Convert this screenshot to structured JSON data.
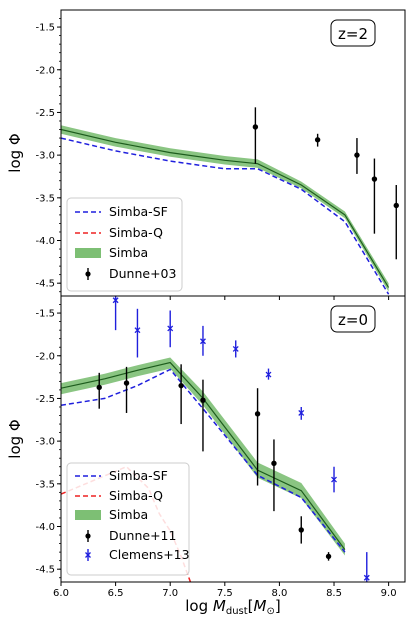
{
  "chart_data": [
    {
      "type": "line",
      "panel": "top",
      "annotation": "z=2",
      "ylabel": "log Φ",
      "xlabel": "",
      "xlim": [
        6.0,
        9.15
      ],
      "ylim": [
        -4.65,
        -1.3
      ],
      "yticks": [
        "-1.5",
        "-2.0",
        "-2.5",
        "-3.0",
        "-3.5",
        "-4.0",
        "-4.5"
      ],
      "ytick_values": [
        -1.5,
        -2.0,
        -2.5,
        -3.0,
        -3.5,
        -4.0,
        -4.5
      ],
      "legend_position": "lower-left",
      "legend": [
        {
          "label": "Simba-SF",
          "style": "dashed",
          "color": "#1f1fdd"
        },
        {
          "label": "Simba-Q",
          "style": "dashed",
          "color": "#ee2222"
        },
        {
          "label": "Simba",
          "style": "band",
          "color": "#7dbf74"
        },
        {
          "label": "Dunne+03",
          "style": "errorbar",
          "color": "#000000"
        }
      ],
      "series": [
        {
          "name": "Simba-SF",
          "kind": "line",
          "color": "#1f1fdd",
          "dash": true,
          "x": [
            6.0,
            6.5,
            7.0,
            7.5,
            7.8,
            8.2,
            8.6,
            9.0
          ],
          "y": [
            -2.8,
            -2.95,
            -3.07,
            -3.16,
            -3.16,
            -3.4,
            -3.78,
            -4.63
          ]
        },
        {
          "name": "Simba",
          "kind": "band",
          "color": "#7dbf74",
          "line_color": "#1d5c1d",
          "x": [
            6.0,
            6.5,
            7.0,
            7.5,
            7.8,
            8.2,
            8.6,
            9.0
          ],
          "y": [
            -2.7,
            -2.85,
            -2.97,
            -3.06,
            -3.1,
            -3.35,
            -3.7,
            -4.55
          ],
          "lower": [
            -2.75,
            -2.9,
            -3.02,
            -3.11,
            -3.15,
            -3.39,
            -3.74,
            -4.6
          ],
          "upper": [
            -2.65,
            -2.8,
            -2.92,
            -3.01,
            -3.05,
            -3.31,
            -3.66,
            -4.5
          ]
        },
        {
          "name": "Dunne+03",
          "kind": "errorbar",
          "color": "#000000",
          "marker": "circle",
          "points": [
            {
              "x": 7.78,
              "y": -2.67,
              "lo": -3.1,
              "hi": -2.44
            },
            {
              "x": 8.35,
              "y": -2.82,
              "lo": -2.9,
              "hi": -2.75
            },
            {
              "x": 8.71,
              "y": -3.0,
              "lo": -3.22,
              "hi": -2.8
            },
            {
              "x": 8.87,
              "y": -3.28,
              "lo": -3.92,
              "hi": -3.04
            },
            {
              "x": 9.07,
              "y": -3.59,
              "lo": -4.22,
              "hi": -3.35
            }
          ]
        }
      ]
    },
    {
      "type": "line",
      "panel": "bottom",
      "annotation": "z=0",
      "ylabel": "log Φ",
      "xlabel": "log M_dust[M_⊙]",
      "xlim": [
        6.0,
        9.15
      ],
      "ylim": [
        -4.65,
        -1.3
      ],
      "xticks": [
        "6.0",
        "6.5",
        "7.0",
        "7.5",
        "8.0",
        "8.5",
        "9.0"
      ],
      "xtick_values": [
        6.0,
        6.5,
        7.0,
        7.5,
        8.0,
        8.5,
        9.0
      ],
      "yticks": [
        "-1.5",
        "-2.0",
        "-2.5",
        "-3.0",
        "-3.5",
        "-4.0",
        "-4.5"
      ],
      "ytick_values": [
        -1.5,
        -2.0,
        -2.5,
        -3.0,
        -3.5,
        -4.0,
        -4.5
      ],
      "legend_position": "lower-left",
      "legend": [
        {
          "label": "Simba-SF",
          "style": "dashed",
          "color": "#1f1fdd"
        },
        {
          "label": "Simba-Q",
          "style": "dashed",
          "color": "#ee2222"
        },
        {
          "label": "Simba",
          "style": "band",
          "color": "#7dbf74"
        },
        {
          "label": "Dunne+11",
          "style": "errorbar",
          "color": "#000000"
        },
        {
          "label": "Clemens+13",
          "style": "errorbar-x",
          "color": "#1f1fdd"
        }
      ],
      "series": [
        {
          "name": "Simba-SF",
          "kind": "line",
          "color": "#1f1fdd",
          "dash": true,
          "x": [
            6.0,
            6.4,
            6.7,
            7.0,
            7.3,
            7.8,
            8.2,
            8.6
          ],
          "y": [
            -2.58,
            -2.5,
            -2.35,
            -2.16,
            -2.62,
            -3.4,
            -3.66,
            -4.3
          ]
        },
        {
          "name": "Simba-Q",
          "kind": "line",
          "color": "#ee2222",
          "dash": true,
          "x": [
            6.0,
            6.6,
            6.8,
            6.9,
            7.0,
            7.1,
            7.2
          ],
          "y": [
            -3.62,
            -3.3,
            -3.55,
            -3.85,
            -4.05,
            -4.35,
            -4.7
          ]
        },
        {
          "name": "Simba",
          "kind": "band",
          "color": "#7dbf74",
          "line_color": "#1d5c1d",
          "x": [
            6.0,
            6.4,
            6.7,
            7.0,
            7.3,
            7.8,
            8.2,
            8.6
          ],
          "y": [
            -2.38,
            -2.27,
            -2.17,
            -2.08,
            -2.5,
            -3.34,
            -3.58,
            -4.27
          ],
          "lower": [
            -2.45,
            -2.34,
            -2.24,
            -2.15,
            -2.58,
            -3.43,
            -3.67,
            -4.34
          ],
          "upper": [
            -2.32,
            -2.21,
            -2.11,
            -2.02,
            -2.42,
            -3.25,
            -3.49,
            -4.2
          ]
        },
        {
          "name": "Dunne+11",
          "kind": "errorbar",
          "color": "#000000",
          "marker": "circle",
          "points": [
            {
              "x": 6.35,
              "y": -2.37,
              "lo": -2.62,
              "hi": -2.2
            },
            {
              "x": 6.6,
              "y": -2.32,
              "lo": -2.67,
              "hi": -2.13
            },
            {
              "x": 7.1,
              "y": -2.35,
              "lo": -2.8,
              "hi": -2.1
            },
            {
              "x": 7.3,
              "y": -2.52,
              "lo": -3.12,
              "hi": -2.28
            },
            {
              "x": 7.8,
              "y": -2.68,
              "lo": -3.52,
              "hi": -2.38
            },
            {
              "x": 7.95,
              "y": -3.26,
              "lo": -3.82,
              "hi": -2.98
            },
            {
              "x": 8.2,
              "y": -4.04,
              "lo": -4.2,
              "hi": -3.88
            },
            {
              "x": 8.45,
              "y": -4.35,
              "lo": -4.4,
              "hi": -4.3
            }
          ]
        },
        {
          "name": "Clemens+13",
          "kind": "errorbar",
          "color": "#1f1fdd",
          "marker": "x",
          "points": [
            {
              "x": 6.5,
              "y": -1.35,
              "lo": -1.7,
              "hi": -1.0
            },
            {
              "x": 6.7,
              "y": -1.7,
              "lo": -2.02,
              "hi": -1.45
            },
            {
              "x": 7.0,
              "y": -1.68,
              "lo": -1.9,
              "hi": -1.47
            },
            {
              "x": 7.3,
              "y": -1.83,
              "lo": -2.0,
              "hi": -1.65
            },
            {
              "x": 7.6,
              "y": -1.92,
              "lo": -2.02,
              "hi": -1.82
            },
            {
              "x": 7.9,
              "y": -2.22,
              "lo": -2.28,
              "hi": -2.15
            },
            {
              "x": 8.2,
              "y": -2.67,
              "lo": -2.75,
              "hi": -2.6
            },
            {
              "x": 8.5,
              "y": -3.45,
              "lo": -3.6,
              "hi": -3.3
            },
            {
              "x": 8.8,
              "y": -4.6,
              "lo": -4.75,
              "hi": -4.3
            }
          ]
        }
      ]
    }
  ]
}
